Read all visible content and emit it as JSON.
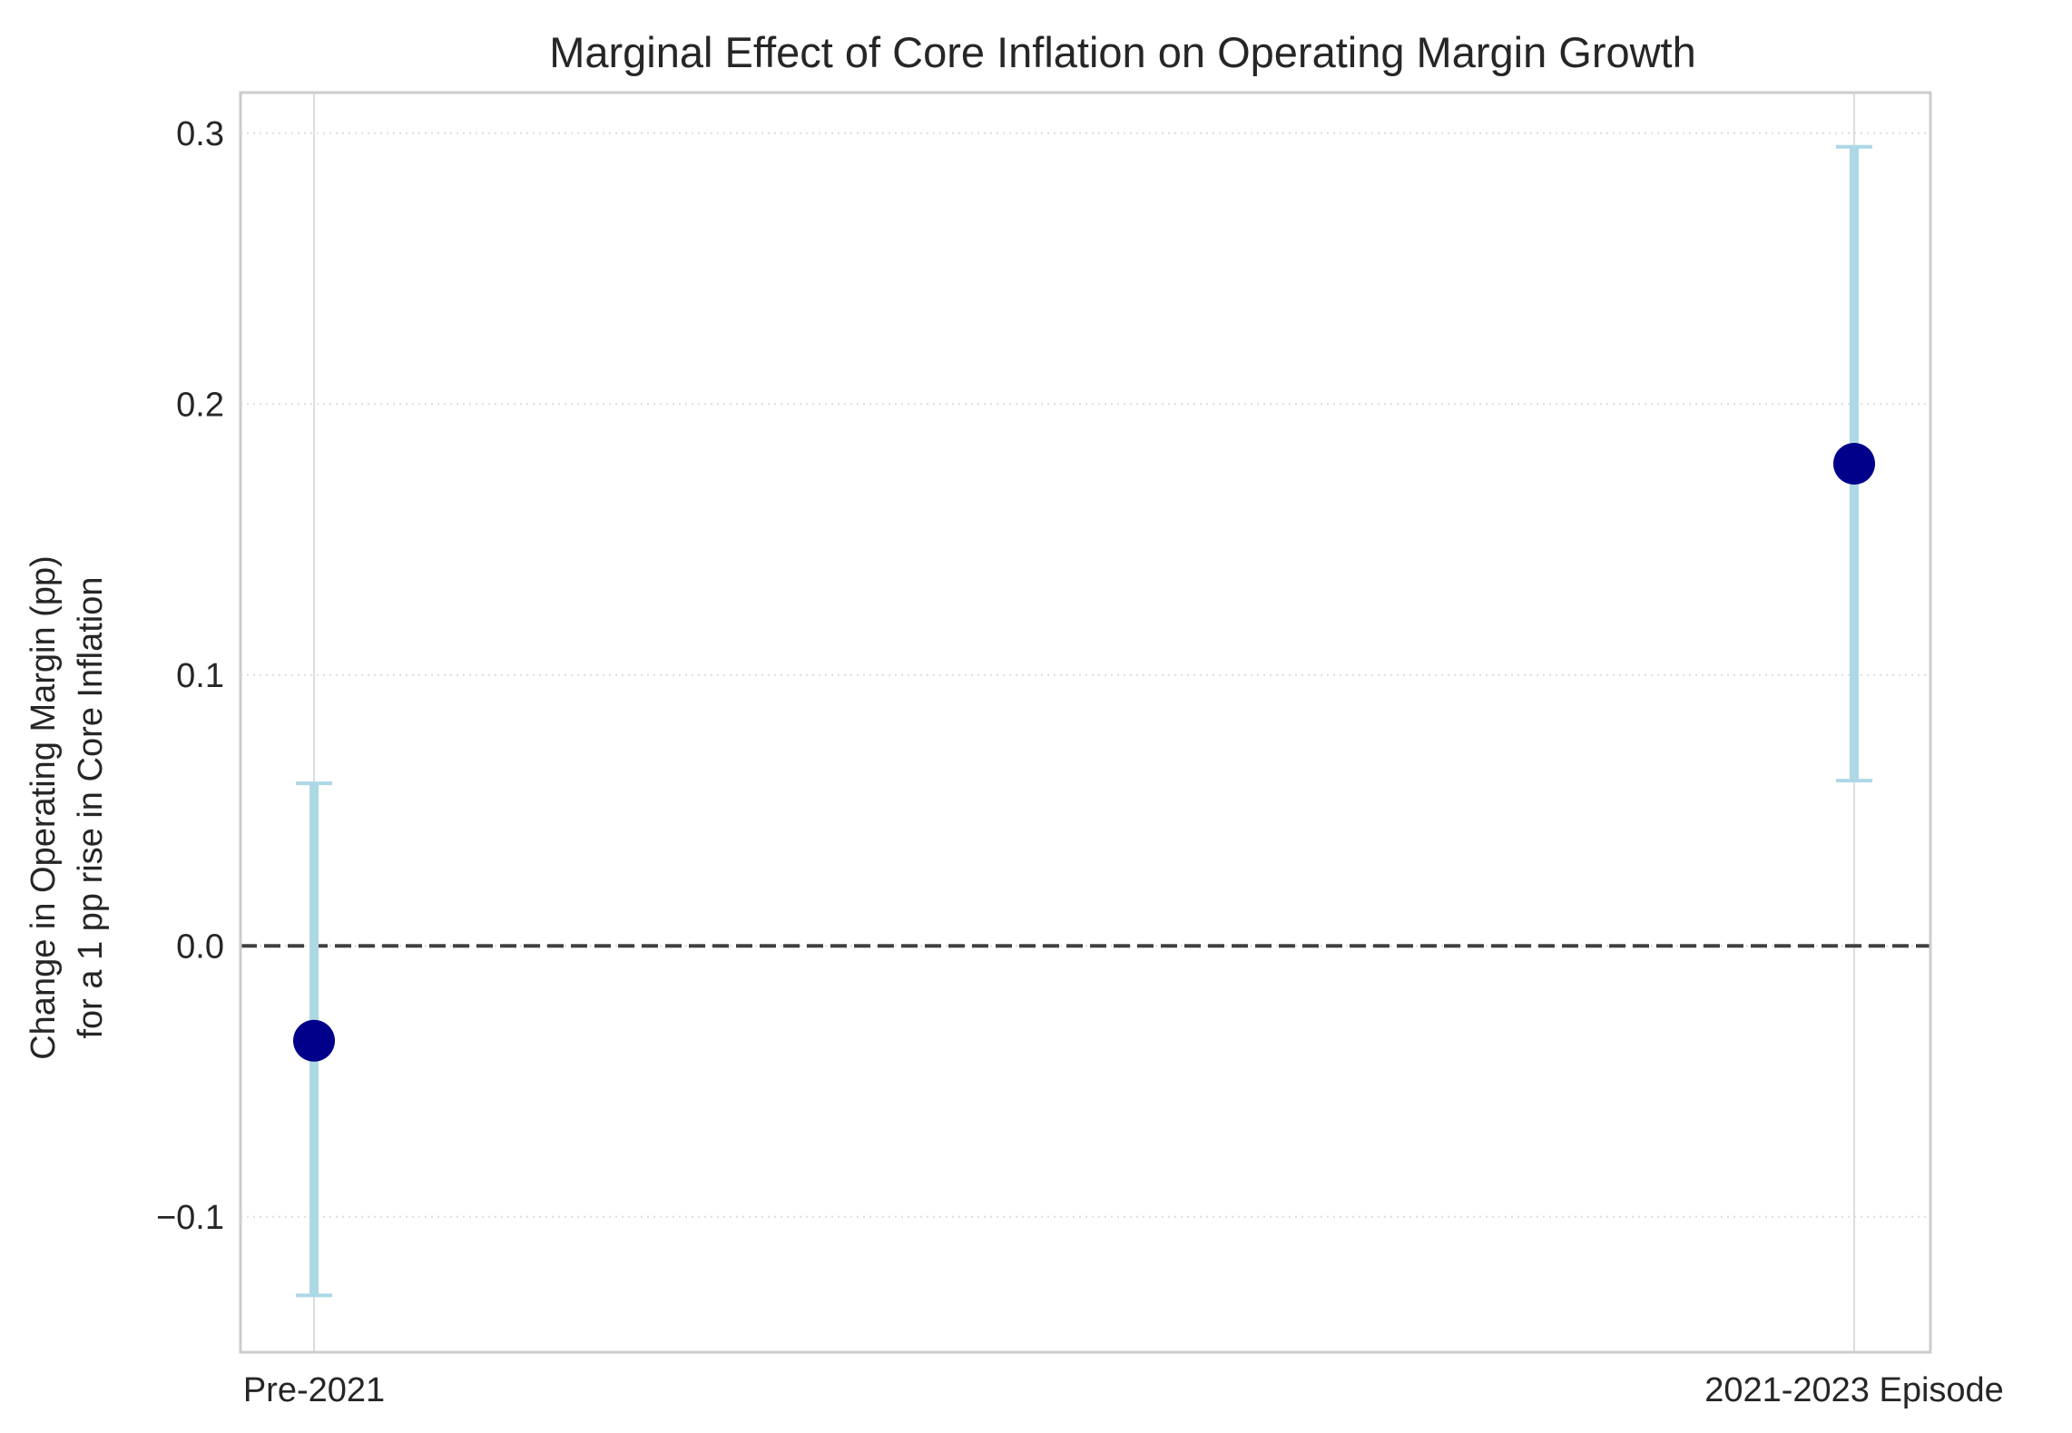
{
  "chart_data": {
    "type": "errorbar",
    "title": "Marginal Effect of Core Inflation on Operating Margin Growth",
    "xlabel": "",
    "ylabel_lines": [
      "Change in Operating Margin (pp)",
      "for a 1 pp rise in Core Inflation"
    ],
    "categories": [
      "Pre-2021",
      "2021-2023 Episode"
    ],
    "values": [
      -0.035,
      0.178
    ],
    "ci_lower": [
      -0.129,
      0.061
    ],
    "ci_upper": [
      0.06,
      0.295
    ],
    "ylim": [
      -0.15,
      0.315
    ],
    "yticks": [
      -0.1,
      0.0,
      0.1,
      0.2,
      0.3
    ],
    "ytick_labels": [
      "−0.1",
      "0.0",
      "0.1",
      "0.2",
      "0.3"
    ],
    "reference_line": 0,
    "grid": true,
    "colors": {
      "point": "#00008b",
      "errorbar": "#add8e6",
      "reference_line": "#404040",
      "grid": "#dddddd",
      "spine": "#cccccc"
    }
  }
}
